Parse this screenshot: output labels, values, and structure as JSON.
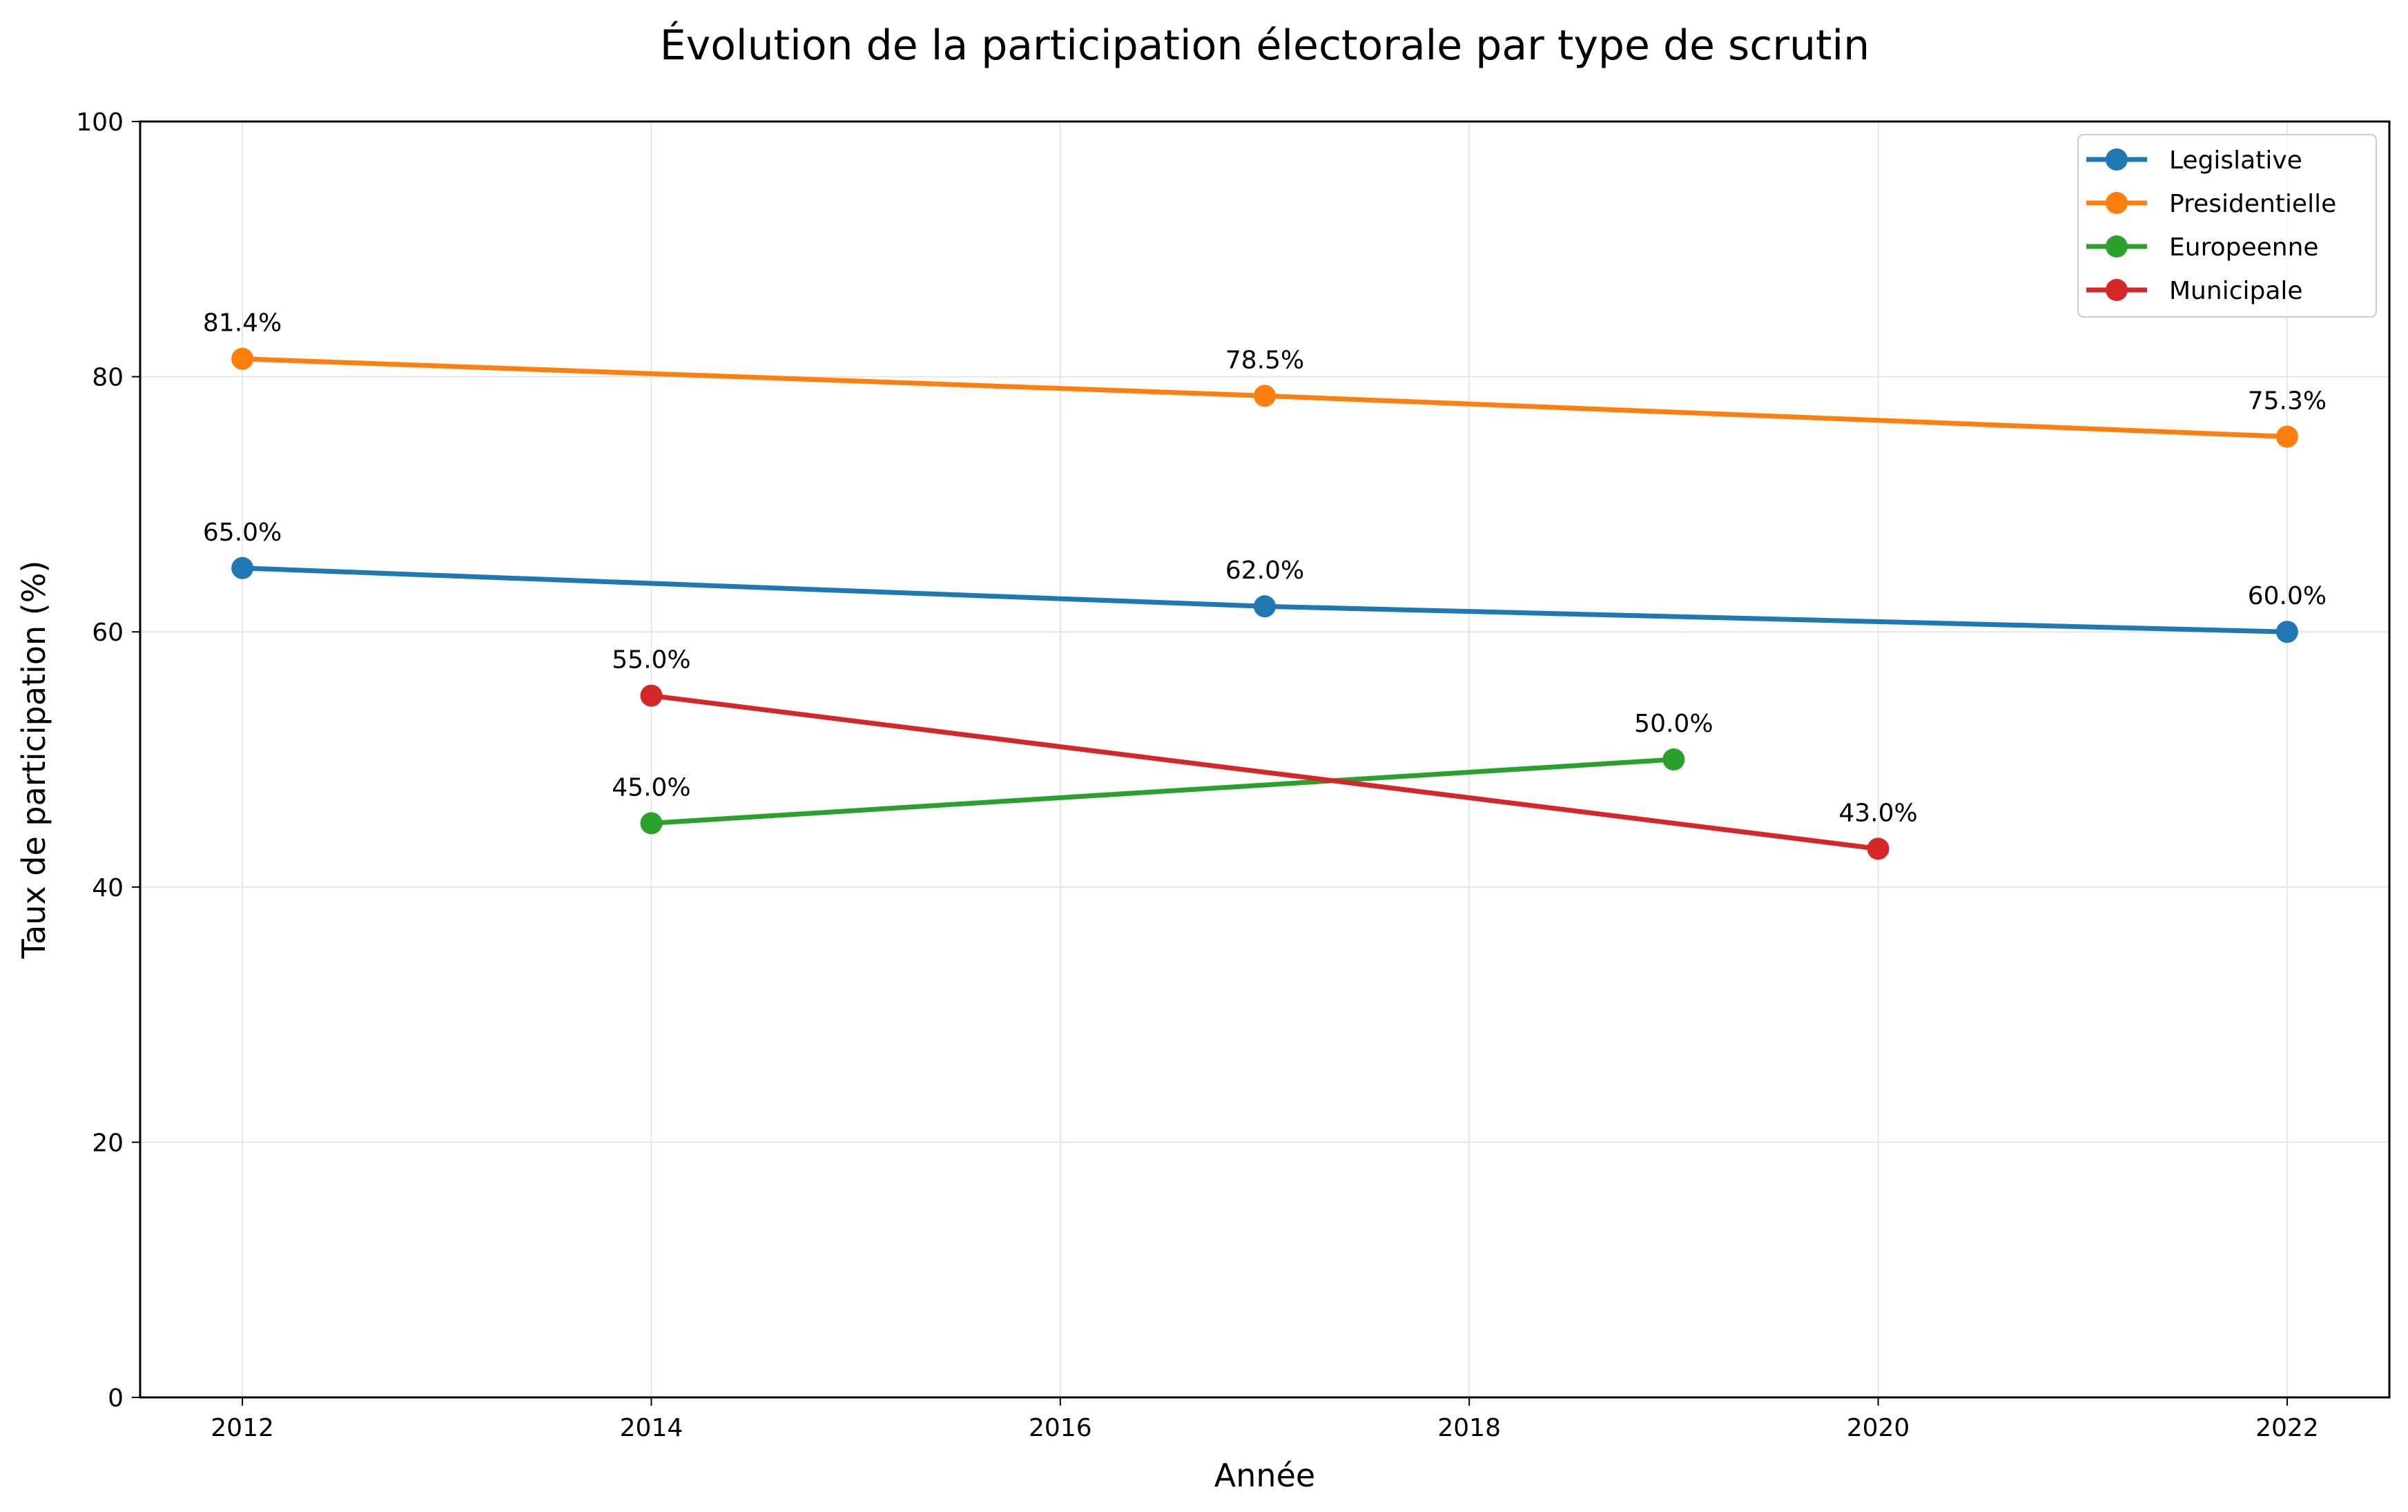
{
  "chart_data": {
    "type": "line",
    "title": "Évolution de la participation électorale par type de scrutin",
    "xlabel": "Année",
    "ylabel": "Taux de participation (%)",
    "xlim": [
      2011.5,
      2022.5
    ],
    "ylim": [
      0,
      100
    ],
    "xticks": [
      "2012",
      "2014",
      "2016",
      "2018",
      "2020",
      "2022"
    ],
    "yticks": [
      "0",
      "20",
      "40",
      "60",
      "80",
      "100"
    ],
    "grid": true,
    "legend": "top-right",
    "series": [
      {
        "name": "Legislative",
        "color": "#1f77b4",
        "x": [
          2012,
          2017,
          2022
        ],
        "values": [
          65.0,
          62.0,
          60.0
        ],
        "labels": [
          "65.0%",
          "62.0%",
          "60.0%"
        ]
      },
      {
        "name": "Presidentielle",
        "color": "#ff7f0e",
        "x": [
          2012,
          2017,
          2022
        ],
        "values": [
          81.4,
          78.5,
          75.3
        ],
        "labels": [
          "81.4%",
          "78.5%",
          "75.3%"
        ]
      },
      {
        "name": "Europeenne",
        "color": "#2ca02c",
        "x": [
          2014,
          2019
        ],
        "values": [
          45.0,
          50.0
        ],
        "labels": [
          "45.0%",
          "50.0%"
        ]
      },
      {
        "name": "Municipale",
        "color": "#d62728",
        "x": [
          2014,
          2020
        ],
        "values": [
          55.0,
          43.0
        ],
        "labels": [
          "55.0%",
          "43.0%"
        ]
      }
    ]
  }
}
